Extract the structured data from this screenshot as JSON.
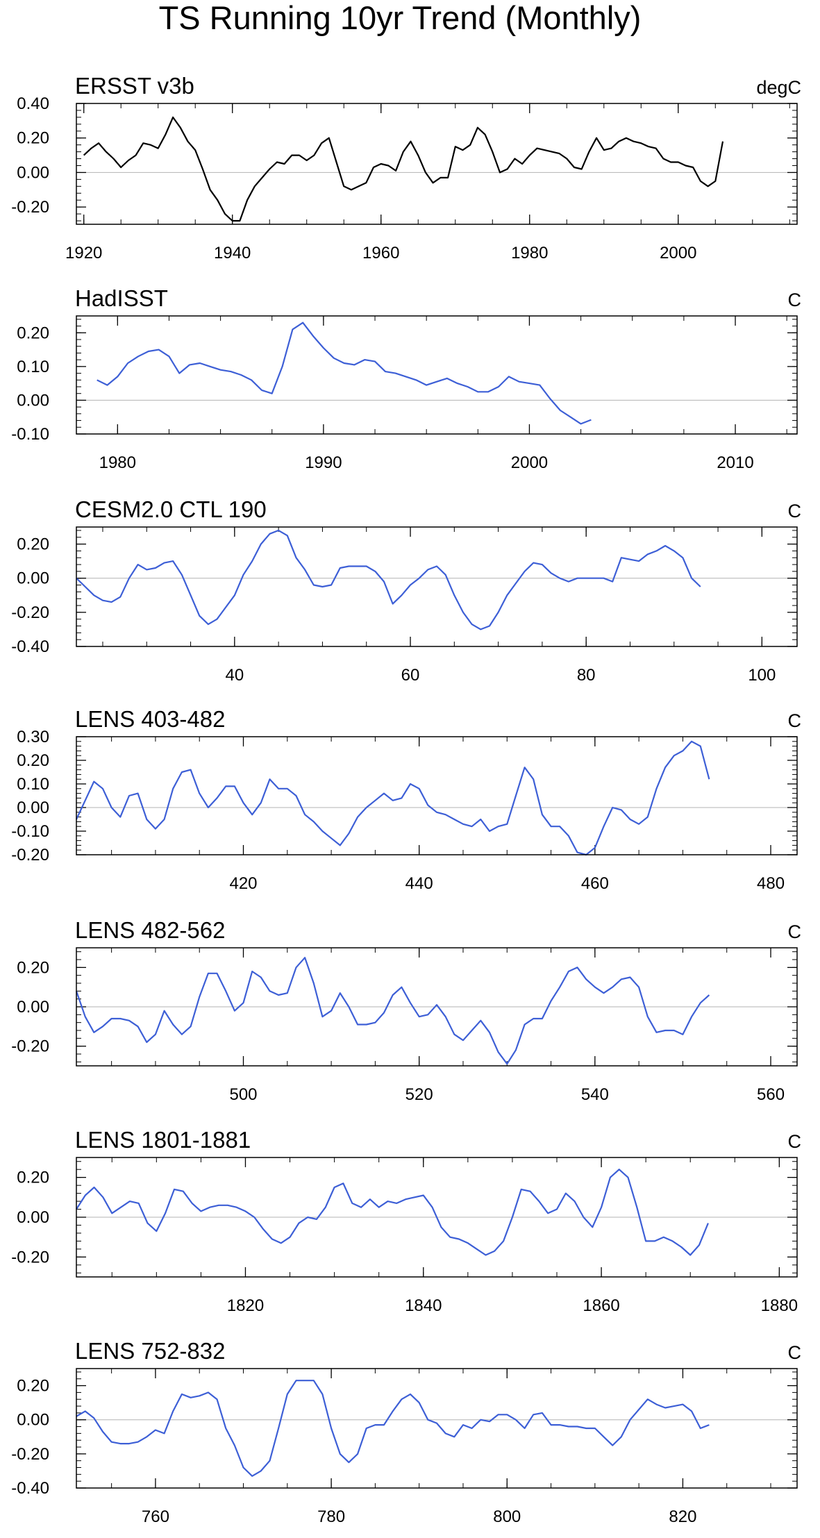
{
  "figure": {
    "title": "TS Running 10yr Trend (Monthly)"
  },
  "chart_data": [
    {
      "type": "line",
      "title": "ERSST v3b",
      "units": "degC",
      "color": "#000000",
      "xlim": [
        1919,
        2016
      ],
      "ylim": [
        -0.3,
        0.4
      ],
      "xticks": [
        1920,
        1940,
        1960,
        1980,
        2000
      ],
      "yticks": [
        -0.2,
        0.0,
        0.2,
        0.4
      ],
      "x": [
        1920,
        1921,
        1922,
        1923,
        1924,
        1925,
        1926,
        1927,
        1928,
        1929,
        1930,
        1931,
        1932,
        1933,
        1934,
        1935,
        1936,
        1937,
        1938,
        1939,
        1940,
        1941,
        1942,
        1943,
        1944,
        1945,
        1946,
        1947,
        1948,
        1949,
        1950,
        1951,
        1952,
        1953,
        1954,
        1955,
        1956,
        1957,
        1958,
        1959,
        1960,
        1961,
        1962,
        1963,
        1964,
        1965,
        1966,
        1967,
        1968,
        1969,
        1970,
        1971,
        1972,
        1973,
        1974,
        1975,
        1976,
        1977,
        1978,
        1979,
        1980,
        1981,
        1982,
        1983,
        1984,
        1985,
        1986,
        1987,
        1988,
        1989,
        1990,
        1991,
        1992,
        1993,
        1994,
        1995,
        1996,
        1997,
        1998,
        1999,
        2000,
        2001,
        2002,
        2003,
        2004,
        2005,
        2006
      ],
      "values": [
        0.1,
        0.14,
        0.17,
        0.12,
        0.08,
        0.03,
        0.07,
        0.1,
        0.17,
        0.16,
        0.14,
        0.22,
        0.32,
        0.26,
        0.18,
        0.13,
        0.02,
        -0.1,
        -0.16,
        -0.24,
        -0.28,
        -0.28,
        -0.16,
        -0.08,
        -0.03,
        0.02,
        0.06,
        0.05,
        0.1,
        0.1,
        0.07,
        0.1,
        0.17,
        0.2,
        0.06,
        -0.08,
        -0.1,
        -0.08,
        -0.06,
        0.03,
        0.05,
        0.04,
        0.01,
        0.12,
        0.18,
        0.1,
        0.0,
        -0.06,
        -0.03,
        -0.03,
        0.15,
        0.13,
        0.16,
        0.26,
        0.22,
        0.12,
        0.0,
        0.02,
        0.08,
        0.05,
        0.1,
        0.14,
        0.13,
        0.12,
        0.11,
        0.08,
        0.03,
        0.02,
        0.12,
        0.2,
        0.13,
        0.14,
        0.18,
        0.2,
        0.18,
        0.17,
        0.15,
        0.14,
        0.08,
        0.06,
        0.06,
        0.04,
        0.03,
        -0.05,
        -0.08,
        -0.05,
        0.18
      ]
    },
    {
      "type": "line",
      "title": "HadISST",
      "units": "C",
      "color": "#3d5fd6",
      "xlim": [
        1978,
        2013
      ],
      "ylim": [
        -0.1,
        0.25
      ],
      "xticks": [
        1980,
        1990,
        2000,
        2010
      ],
      "yticks": [
        -0.1,
        0.0,
        0.1,
        0.2
      ],
      "x": [
        1979.0,
        1979.5,
        1980.0,
        1980.5,
        1981.0,
        1981.5,
        1982.0,
        1982.5,
        1983.0,
        1983.5,
        1984.0,
        1984.5,
        1985.0,
        1985.5,
        1986.0,
        1986.5,
        1987.0,
        1987.5,
        1988.0,
        1988.5,
        1989.0,
        1989.5,
        1990.0,
        1990.5,
        1991.0,
        1991.5,
        1992.0,
        1992.5,
        1993.0,
        1993.5,
        1994.0,
        1994.5,
        1995.0,
        1995.5,
        1996.0,
        1996.5,
        1997.0,
        1997.5,
        1998.0,
        1998.5,
        1999.0,
        1999.5,
        2000.0,
        2000.5,
        2001.0,
        2001.5,
        2002.0,
        2002.5,
        2003.0
      ],
      "values": [
        0.06,
        0.045,
        0.07,
        0.11,
        0.13,
        0.145,
        0.15,
        0.13,
        0.08,
        0.105,
        0.11,
        0.1,
        0.09,
        0.085,
        0.075,
        0.06,
        0.03,
        0.02,
        0.1,
        0.21,
        0.23,
        0.19,
        0.155,
        0.125,
        0.11,
        0.105,
        0.12,
        0.115,
        0.085,
        0.08,
        0.07,
        0.06,
        0.045,
        0.055,
        0.065,
        0.05,
        0.04,
        0.025,
        0.025,
        0.04,
        0.07,
        0.055,
        0.05,
        0.045,
        0.005,
        -0.03,
        -0.05,
        -0.07,
        -0.058
      ]
    },
    {
      "type": "line",
      "title": "CESM2.0 CTL 190",
      "units": "C",
      "color": "#3d5fd6",
      "xlim": [
        22,
        104
      ],
      "ylim": [
        -0.4,
        0.3
      ],
      "xticks": [
        40,
        60,
        80,
        100
      ],
      "yticks": [
        -0.4,
        -0.2,
        0.0,
        0.2
      ],
      "x": [
        22,
        23,
        24,
        25,
        26,
        27,
        28,
        29,
        30,
        31,
        32,
        33,
        34,
        35,
        36,
        37,
        38,
        39,
        40,
        41,
        42,
        43,
        44,
        45,
        46,
        47,
        48,
        49,
        50,
        51,
        52,
        53,
        54,
        55,
        56,
        57,
        58,
        59,
        60,
        61,
        62,
        63,
        64,
        65,
        66,
        67,
        68,
        69,
        70,
        71,
        72,
        73,
        74,
        75,
        76,
        77,
        78,
        79,
        80,
        81,
        82,
        83,
        84,
        85,
        86,
        87,
        88,
        89,
        90,
        91,
        92,
        93
      ],
      "values": [
        0.0,
        -0.05,
        -0.1,
        -0.13,
        -0.14,
        -0.11,
        0.0,
        0.08,
        0.05,
        0.06,
        0.09,
        0.1,
        0.02,
        -0.1,
        -0.22,
        -0.27,
        -0.24,
        -0.17,
        -0.1,
        0.02,
        0.1,
        0.2,
        0.26,
        0.28,
        0.25,
        0.12,
        0.05,
        -0.04,
        -0.05,
        -0.04,
        0.06,
        0.07,
        0.07,
        0.07,
        0.04,
        -0.02,
        -0.15,
        -0.1,
        -0.04,
        0.0,
        0.05,
        0.07,
        0.02,
        -0.1,
        -0.2,
        -0.27,
        -0.3,
        -0.28,
        -0.2,
        -0.1,
        -0.03,
        0.04,
        0.09,
        0.08,
        0.03,
        0.0,
        -0.02,
        0.0,
        0.0,
        0.0,
        0.0,
        -0.02,
        0.12,
        0.11,
        0.1,
        0.14,
        0.16,
        0.19,
        0.16,
        0.12,
        0.0,
        -0.05
      ]
    },
    {
      "type": "line",
      "title": "LENS 403-482",
      "units": "C",
      "color": "#3d5fd6",
      "xlim": [
        401,
        483
      ],
      "ylim": [
        -0.2,
        0.3
      ],
      "xticks": [
        420,
        440,
        460,
        480
      ],
      "yticks": [
        -0.2,
        -0.1,
        0.0,
        0.1,
        0.2,
        0.3
      ],
      "x": [
        401,
        402,
        403,
        404,
        405,
        406,
        407,
        408,
        409,
        410,
        411,
        412,
        413,
        414,
        415,
        416,
        417,
        418,
        419,
        420,
        421,
        422,
        423,
        424,
        425,
        426,
        427,
        428,
        429,
        430,
        431,
        432,
        433,
        434,
        435,
        436,
        437,
        438,
        439,
        440,
        441,
        442,
        443,
        444,
        445,
        446,
        447,
        448,
        449,
        450,
        451,
        452,
        453,
        454,
        455,
        456,
        457,
        458,
        459,
        460,
        461,
        462,
        463,
        464,
        465,
        466,
        467,
        468,
        469,
        470,
        471,
        472,
        473
      ],
      "values": [
        -0.05,
        0.03,
        0.11,
        0.08,
        0.0,
        -0.04,
        0.05,
        0.06,
        -0.05,
        -0.09,
        -0.05,
        0.08,
        0.15,
        0.16,
        0.06,
        0.0,
        0.04,
        0.09,
        0.09,
        0.02,
        -0.03,
        0.02,
        0.12,
        0.08,
        0.08,
        0.05,
        -0.03,
        -0.06,
        -0.1,
        -0.13,
        -0.16,
        -0.11,
        -0.04,
        0.0,
        0.03,
        0.06,
        0.03,
        0.04,
        0.1,
        0.08,
        0.01,
        -0.02,
        -0.03,
        -0.05,
        -0.07,
        -0.08,
        -0.05,
        -0.1,
        -0.08,
        -0.07,
        0.05,
        0.17,
        0.12,
        -0.03,
        -0.08,
        -0.08,
        -0.12,
        -0.19,
        -0.2,
        -0.17,
        -0.08,
        0.0,
        -0.01,
        -0.05,
        -0.07,
        -0.04,
        0.08,
        0.17,
        0.22,
        0.24,
        0.28,
        0.26,
        0.12
      ]
    },
    {
      "type": "line",
      "title": "LENS 482-562",
      "units": "C",
      "color": "#3d5fd6",
      "xlim": [
        481,
        563
      ],
      "ylim": [
        -0.3,
        0.3
      ],
      "xticks": [
        500,
        520,
        540,
        560
      ],
      "yticks": [
        -0.2,
        0.0,
        0.2
      ],
      "x": [
        481,
        482,
        483,
        484,
        485,
        486,
        487,
        488,
        489,
        490,
        491,
        492,
        493,
        494,
        495,
        496,
        497,
        498,
        499,
        500,
        501,
        502,
        503,
        504,
        505,
        506,
        507,
        508,
        509,
        510,
        511,
        512,
        513,
        514,
        515,
        516,
        517,
        518,
        519,
        520,
        521,
        522,
        523,
        524,
        525,
        526,
        527,
        528,
        529,
        530,
        531,
        532,
        533,
        534,
        535,
        536,
        537,
        538,
        539,
        540,
        541,
        542,
        543,
        544,
        545,
        546,
        547,
        548,
        549,
        550,
        551,
        552,
        553
      ],
      "values": [
        0.08,
        -0.05,
        -0.13,
        -0.1,
        -0.06,
        -0.06,
        -0.07,
        -0.1,
        -0.18,
        -0.14,
        -0.02,
        -0.09,
        -0.14,
        -0.1,
        0.05,
        0.17,
        0.17,
        0.08,
        -0.02,
        0.02,
        0.18,
        0.15,
        0.08,
        0.06,
        0.07,
        0.2,
        0.25,
        0.12,
        -0.05,
        -0.02,
        0.07,
        0.0,
        -0.09,
        -0.09,
        -0.08,
        -0.03,
        0.06,
        0.1,
        0.02,
        -0.05,
        -0.04,
        0.01,
        -0.05,
        -0.14,
        -0.17,
        -0.12,
        -0.07,
        -0.13,
        -0.23,
        -0.29,
        -0.22,
        -0.09,
        -0.06,
        -0.06,
        0.03,
        0.1,
        0.18,
        0.2,
        0.14,
        0.1,
        0.07,
        0.1,
        0.14,
        0.15,
        0.1,
        -0.05,
        -0.13,
        -0.12,
        -0.12,
        -0.14,
        -0.05,
        0.02,
        0.06
      ]
    },
    {
      "type": "line",
      "title": "LENS 1801-1881",
      "units": "C",
      "color": "#3d5fd6",
      "xlim": [
        1801,
        1882
      ],
      "ylim": [
        -0.3,
        0.3
      ],
      "xticks": [
        1820,
        1840,
        1860,
        1880
      ],
      "yticks": [
        -0.2,
        0.0,
        0.2
      ],
      "x": [
        1801,
        1802,
        1803,
        1804,
        1805,
        1806,
        1807,
        1808,
        1809,
        1810,
        1811,
        1812,
        1813,
        1814,
        1815,
        1816,
        1817,
        1818,
        1819,
        1820,
        1821,
        1822,
        1823,
        1824,
        1825,
        1826,
        1827,
        1828,
        1829,
        1830,
        1831,
        1832,
        1833,
        1834,
        1835,
        1836,
        1837,
        1838,
        1839,
        1840,
        1841,
        1842,
        1843,
        1844,
        1845,
        1846,
        1847,
        1848,
        1849,
        1850,
        1851,
        1852,
        1853,
        1854,
        1855,
        1856,
        1857,
        1858,
        1859,
        1860,
        1861,
        1862,
        1863,
        1864,
        1865,
        1866,
        1867,
        1868,
        1869,
        1870,
        1871,
        1872
      ],
      "values": [
        0.04,
        0.11,
        0.15,
        0.1,
        0.02,
        0.05,
        0.08,
        0.07,
        -0.03,
        -0.07,
        0.02,
        0.14,
        0.13,
        0.07,
        0.03,
        0.05,
        0.06,
        0.06,
        0.05,
        0.03,
        0.0,
        -0.06,
        -0.11,
        -0.13,
        -0.1,
        -0.03,
        0.0,
        -0.01,
        0.05,
        0.15,
        0.17,
        0.07,
        0.05,
        0.09,
        0.05,
        0.08,
        0.07,
        0.09,
        0.1,
        0.11,
        0.05,
        -0.05,
        -0.1,
        -0.11,
        -0.13,
        -0.16,
        -0.19,
        -0.17,
        -0.12,
        0.0,
        0.14,
        0.13,
        0.08,
        0.02,
        0.04,
        0.12,
        0.08,
        0.0,
        -0.05,
        0.05,
        0.2,
        0.24,
        0.2,
        0.05,
        -0.12,
        -0.12,
        -0.1,
        -0.12,
        -0.15,
        -0.19,
        -0.14,
        -0.03
      ]
    },
    {
      "type": "line",
      "title": "LENS 752-832",
      "units": "C",
      "color": "#3d5fd6",
      "xlim": [
        751,
        833
      ],
      "ylim": [
        -0.4,
        0.3
      ],
      "xticks": [
        760,
        780,
        800,
        820
      ],
      "yticks": [
        -0.4,
        -0.2,
        0.0,
        0.2
      ],
      "x": [
        751,
        752,
        753,
        754,
        755,
        756,
        757,
        758,
        759,
        760,
        761,
        762,
        763,
        764,
        765,
        766,
        767,
        768,
        769,
        770,
        771,
        772,
        773,
        774,
        775,
        776,
        777,
        778,
        779,
        780,
        781,
        782,
        783,
        784,
        785,
        786,
        787,
        788,
        789,
        790,
        791,
        792,
        793,
        794,
        795,
        796,
        797,
        798,
        799,
        800,
        801,
        802,
        803,
        804,
        805,
        806,
        807,
        808,
        809,
        810,
        811,
        812,
        813,
        814,
        815,
        816,
        817,
        818,
        819,
        820,
        821,
        822,
        823
      ],
      "values": [
        0.02,
        0.05,
        0.01,
        -0.07,
        -0.13,
        -0.14,
        -0.14,
        -0.13,
        -0.1,
        -0.06,
        -0.08,
        0.05,
        0.15,
        0.13,
        0.14,
        0.16,
        0.12,
        -0.05,
        -0.15,
        -0.28,
        -0.33,
        -0.3,
        -0.24,
        -0.05,
        0.15,
        0.23,
        0.23,
        0.23,
        0.15,
        -0.05,
        -0.2,
        -0.25,
        -0.2,
        -0.05,
        -0.03,
        -0.03,
        0.05,
        0.12,
        0.15,
        0.1,
        0.0,
        -0.02,
        -0.08,
        -0.1,
        -0.03,
        -0.05,
        0.0,
        -0.01,
        0.03,
        0.03,
        0.0,
        -0.05,
        0.03,
        0.04,
        -0.03,
        -0.03,
        -0.04,
        -0.04,
        -0.05,
        -0.05,
        -0.1,
        -0.15,
        -0.1,
        0.0,
        0.06,
        0.12,
        0.09,
        0.07,
        0.08,
        0.09,
        0.05,
        -0.05,
        -0.03
      ]
    }
  ]
}
